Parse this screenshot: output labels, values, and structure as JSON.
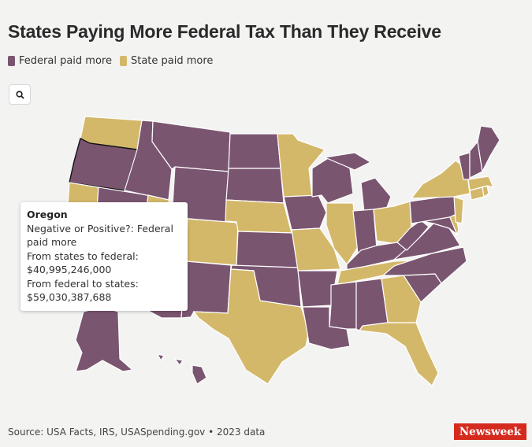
{
  "title": "States Paying More Federal Tax Than They Receive",
  "legend": [
    {
      "label": "Federal paid more",
      "color": "#7a5570"
    },
    {
      "label": "State paid more",
      "color": "#d4b86a"
    }
  ],
  "search": {
    "icon": "search-icon"
  },
  "tooltip": {
    "state": "Oregon",
    "line1": "Negative or Positive?: Federal paid more",
    "line2": "From states to federal: $40,995,246,000",
    "line3": "From federal to states: $59,030,387,688"
  },
  "source": "Source: USA Facts, IRS, USASpending.gov • 2023 data",
  "logo": "Newsweek",
  "colors": {
    "federal": "#7a5570",
    "state": "#d4b86a"
  },
  "states": {
    "WA": "state",
    "OR": "federal",
    "CA": "state",
    "ID": "federal",
    "NV": "federal",
    "MT": "federal",
    "WY": "federal",
    "UT": "state",
    "CO": "state",
    "AZ": "federal",
    "NM": "federal",
    "ND": "federal",
    "SD": "federal",
    "NE": "state",
    "KS": "federal",
    "OK": "federal",
    "TX": "state",
    "MN": "state",
    "IA": "federal",
    "MO": "state",
    "AR": "federal",
    "LA": "federal",
    "WI": "federal",
    "IL": "state",
    "MI": "federal",
    "IN": "federal",
    "OH": "state",
    "KY": "federal",
    "TN": "state",
    "MS": "federal",
    "AL": "federal",
    "GA": "state",
    "FL": "state",
    "SC": "federal",
    "NC": "federal",
    "VA": "federal",
    "WV": "federal",
    "PA": "federal",
    "NY": "state",
    "NJ": "state",
    "DE": "state",
    "MD": "federal",
    "CT": "state",
    "RI": "state",
    "MA": "state",
    "VT": "federal",
    "NH": "federal",
    "ME": "federal",
    "AK": "federal",
    "HI": "federal"
  }
}
